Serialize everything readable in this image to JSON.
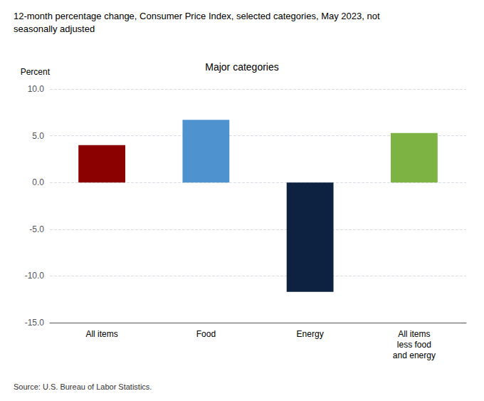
{
  "chart_data": {
    "type": "bar",
    "title": "12-month percentage change, Consumer Price Index, selected categories, May 2023, not\nseasonally adjusted",
    "subtitle": "Major categories",
    "ylabel": "Percent",
    "annotations": [
      "Source: U.S. Bureau of Labor Statistics."
    ],
    "categories": [
      "All items",
      "Food",
      "Energy",
      "All items\nless food\nand energy"
    ],
    "values": [
      4.0,
      6.7,
      -11.7,
      5.3
    ],
    "colors": [
      "#8B0000",
      "#4E92D0",
      "#0D2240",
      "#7CB342"
    ],
    "ylim": [
      -15.0,
      10.0
    ],
    "yticks": [
      {
        "value": -15.0,
        "label": "-15.0"
      },
      {
        "value": -10.0,
        "label": "-10.0"
      },
      {
        "value": -5.0,
        "label": "-5.0"
      },
      {
        "value": 0.0,
        "label": "0.0"
      },
      {
        "value": 5.0,
        "label": "5.0"
      },
      {
        "value": 10.0,
        "label": "10.0"
      }
    ],
    "grid": true
  }
}
